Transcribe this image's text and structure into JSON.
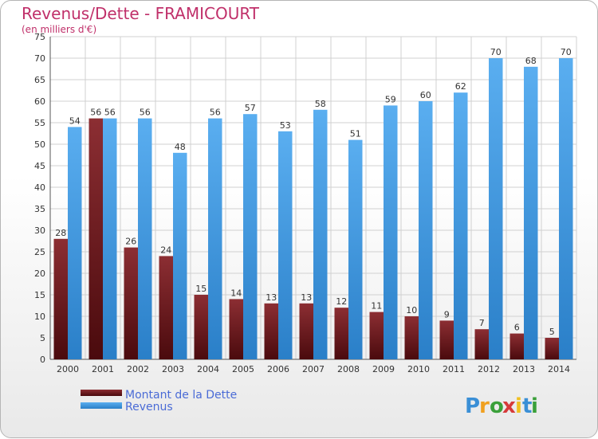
{
  "chart_data": {
    "type": "bar",
    "title": "Revenus/Dette - FRAMICOURT",
    "subtitle": "(en milliers d'€)",
    "categories": [
      "2000",
      "2001",
      "2002",
      "2003",
      "2004",
      "2005",
      "2006",
      "2007",
      "2008",
      "2009",
      "2010",
      "2011",
      "2012",
      "2013",
      "2014"
    ],
    "series": [
      {
        "name": "Montant de la Dette",
        "color": "#7a1f24",
        "values": [
          28,
          56,
          26,
          24,
          15,
          14,
          13,
          13,
          12,
          11,
          10,
          9,
          7,
          6,
          5
        ]
      },
      {
        "name": "Revenus",
        "color": "#3e9be2",
        "values": [
          54,
          56,
          56,
          48,
          56,
          57,
          53,
          58,
          51,
          59,
          60,
          62,
          70,
          68,
          70
        ]
      }
    ],
    "ylim": [
      0,
      75
    ],
    "yticks": [
      0,
      5,
      10,
      15,
      20,
      25,
      30,
      35,
      40,
      45,
      50,
      55,
      60,
      65,
      70,
      75
    ],
    "grid": true,
    "legend": "bottom-left"
  },
  "brand": {
    "logo_text": "Proxiti",
    "letters": [
      "P",
      "r",
      "o",
      "x",
      "i",
      "t",
      "i"
    ],
    "letter_colors": [
      "#3a8fd6",
      "#f0a020",
      "#3aa03a",
      "#d63a3a",
      "#f0c020",
      "#3a8fd6",
      "#3aa03a"
    ]
  }
}
